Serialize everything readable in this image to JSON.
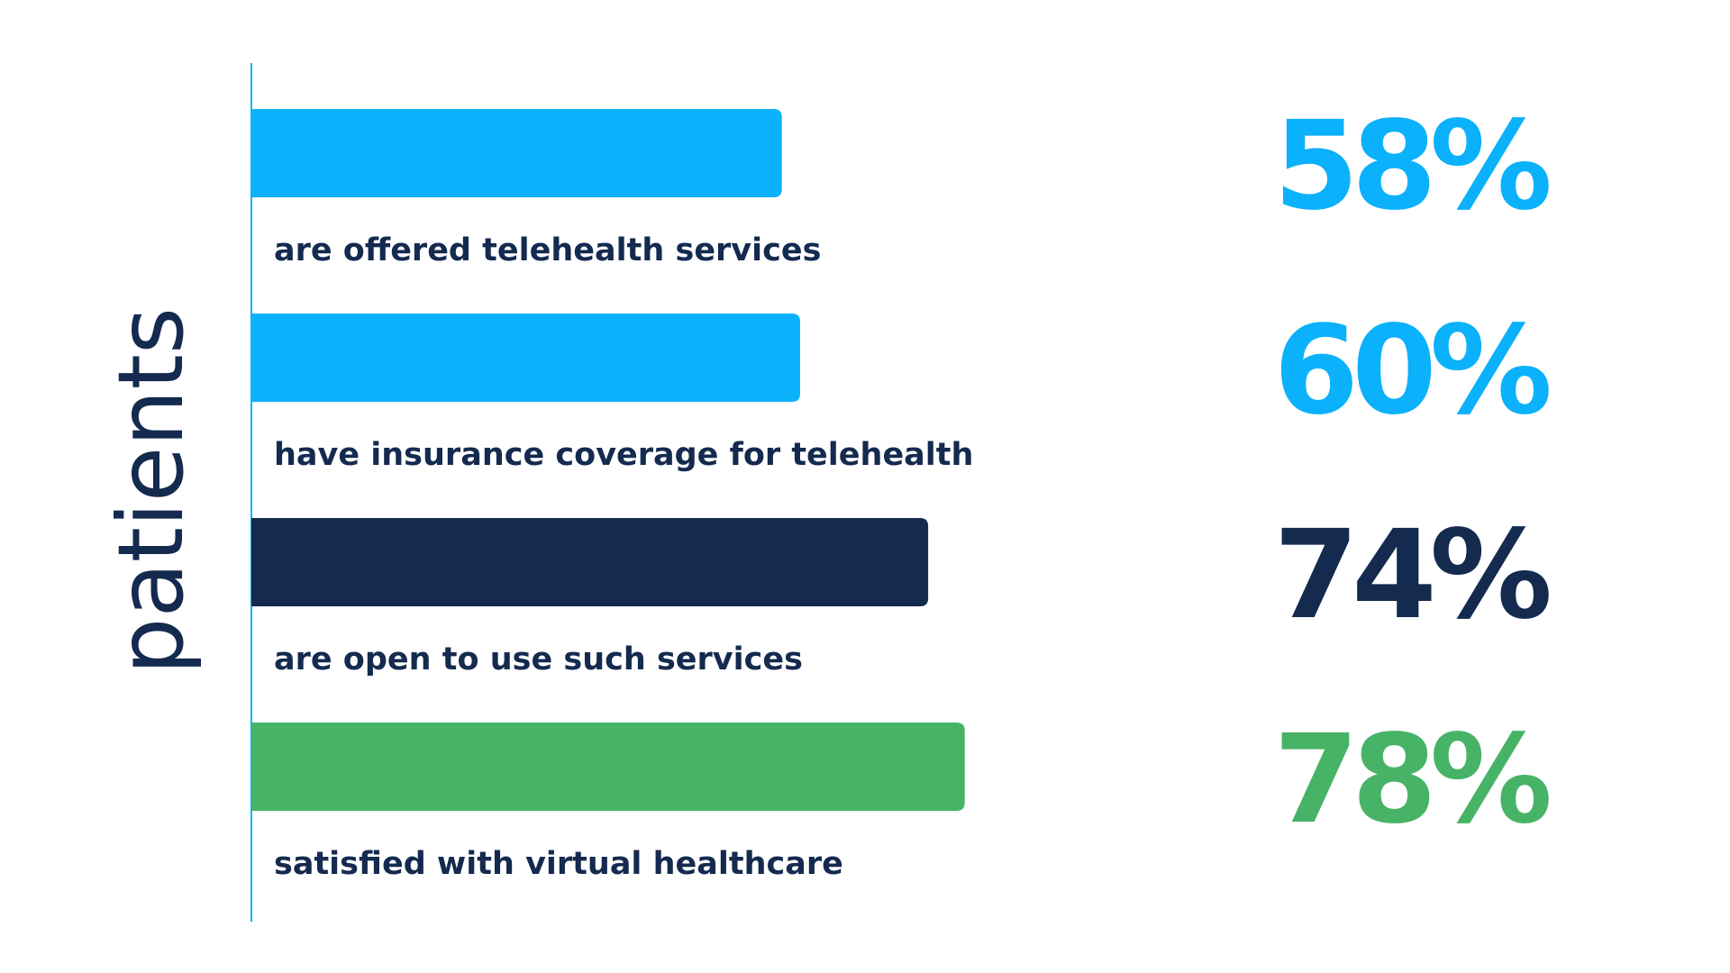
{
  "chart_data": {
    "type": "bar",
    "orientation": "horizontal",
    "ylabel": "patients",
    "categories": [
      "are offered telehealth services",
      "have insurance coverage for telehealth",
      "are open to use such services",
      "satisfied with virtual healthcare"
    ],
    "values": [
      58,
      60,
      74,
      78
    ],
    "value_labels": [
      "58%",
      "60%",
      "74%",
      "78%"
    ],
    "colors": [
      "#0bb1fa",
      "#0bb1fa",
      "#142a4f",
      "#47b366"
    ],
    "xlim": [
      0,
      100
    ],
    "grid": false,
    "legend": "none"
  }
}
